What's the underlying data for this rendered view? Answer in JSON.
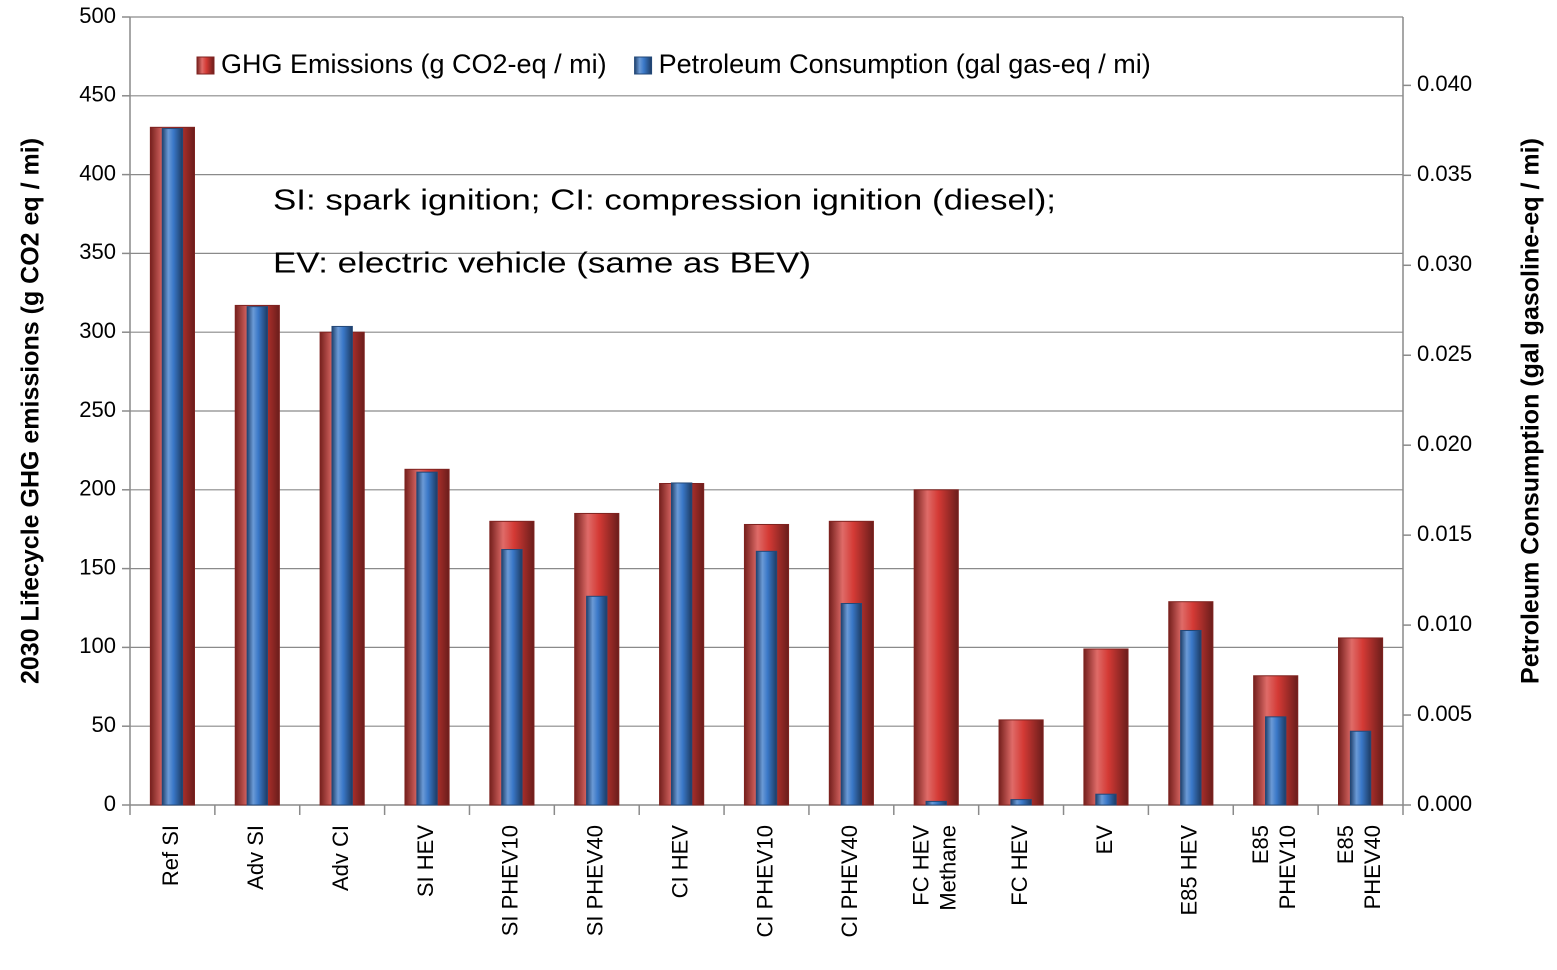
{
  "chart_data": {
    "type": "bar",
    "ylabel": "2030 Lifecycle GHG emissions (g CO2 eq / mi)",
    "y2label": "Petroleum Consumption (gal gasoline-eq / mi)",
    "annotations": [
      "SI: spark ignition; CI: compression ignition (diesel);",
      "EV: electric vehicle (same as BEV)"
    ],
    "categories": [
      [
        "Ref SI"
      ],
      [
        "Adv SI"
      ],
      [
        "Adv CI"
      ],
      [
        "SI HEV"
      ],
      [
        "SI PHEV10"
      ],
      [
        "SI PHEV40"
      ],
      [
        "CI HEV"
      ],
      [
        "CI PHEV10"
      ],
      [
        "CI PHEV40"
      ],
      [
        "FC HEV",
        "Methane"
      ],
      [
        "FC HEV"
      ],
      [
        "EV"
      ],
      [
        "E85 HEV"
      ],
      [
        "E85",
        "PHEV10"
      ],
      [
        "E85",
        "PHEV40"
      ]
    ],
    "series": [
      {
        "name": "GHG Emissions (g CO2-eq / mi)",
        "color": "#d43a35",
        "axis": "y",
        "values": [
          430,
          317,
          300,
          213,
          180,
          185,
          204,
          178,
          180,
          200,
          54,
          99,
          129,
          82,
          106
        ]
      },
      {
        "name": "Petroleum Consumption (gal gas-eq / mi)",
        "color": "#3a78c8",
        "axis": "y2",
        "values": [
          0.0376,
          0.0277,
          0.0266,
          0.0185,
          0.0142,
          0.0116,
          0.0179,
          0.0141,
          0.0112,
          0.0002,
          0.0003,
          0.0006,
          0.0097,
          0.0049,
          0.0041
        ]
      }
    ],
    "ylim": [
      0,
      500
    ],
    "yticks": [
      0,
      50,
      100,
      150,
      200,
      250,
      300,
      350,
      400,
      450,
      500
    ],
    "y2lim": [
      0,
      0.0438
    ],
    "y2ticks": [
      {
        "value": 0,
        "label": "0.000"
      },
      {
        "value": 0.005,
        "label": "0.005"
      },
      {
        "value": 0.01,
        "label": "0.010"
      },
      {
        "value": 0.015,
        "label": "0.015"
      },
      {
        "value": 0.02,
        "label": "0.020"
      },
      {
        "value": 0.025,
        "label": "0.025"
      },
      {
        "value": 0.03,
        "label": "0.030"
      },
      {
        "value": 0.035,
        "label": "0.035"
      },
      {
        "value": 0.04,
        "label": "0.040"
      }
    ],
    "grid": true,
    "legend": "top"
  }
}
